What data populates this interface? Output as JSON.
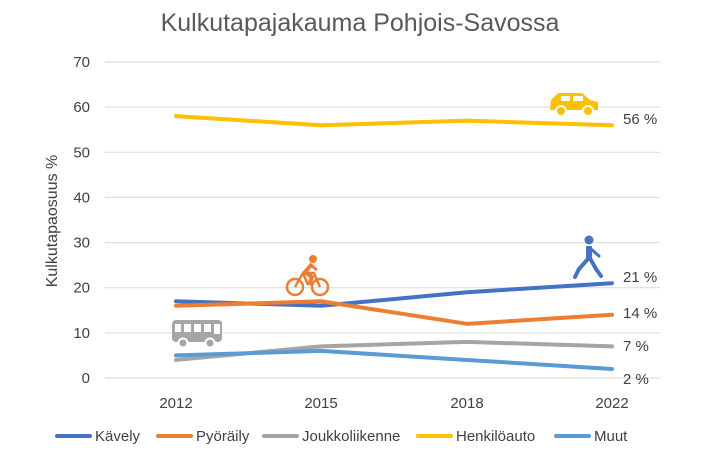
{
  "chart_data": {
    "type": "line",
    "title": "Kulkutapajakauma Pohjois-Savossa",
    "ylabel": "Kulkutapaosuus %",
    "xlabel": "",
    "ylim": [
      0,
      70
    ],
    "yticks": [
      0,
      10,
      20,
      30,
      40,
      50,
      60,
      70
    ],
    "x": [
      "2012",
      "2015",
      "2018",
      "2022"
    ],
    "grid": true,
    "legend_position": "bottom",
    "series": [
      {
        "name": "Kävely",
        "color": "#4472c4",
        "values": [
          17,
          16,
          19,
          21
        ],
        "end_label": "21 %",
        "icon": "pedestrian-icon"
      },
      {
        "name": "Pyöräily",
        "color": "#ed7d31",
        "values": [
          16,
          17,
          12,
          14
        ],
        "end_label": "14 %",
        "icon": "bicycle-icon"
      },
      {
        "name": "Joukkoliikenne",
        "color": "#a5a5a5",
        "values": [
          4,
          7,
          8,
          7
        ],
        "end_label": "7 %",
        "icon": "bus-icon"
      },
      {
        "name": "Henkilöauto",
        "color": "#ffc000",
        "values": [
          58,
          56,
          57,
          56
        ],
        "end_label": "56 %",
        "icon": "car-icon"
      },
      {
        "name": "Muut",
        "color": "#5b9bd5",
        "values": [
          5,
          6,
          4,
          2
        ],
        "end_label": "2 %"
      }
    ]
  }
}
